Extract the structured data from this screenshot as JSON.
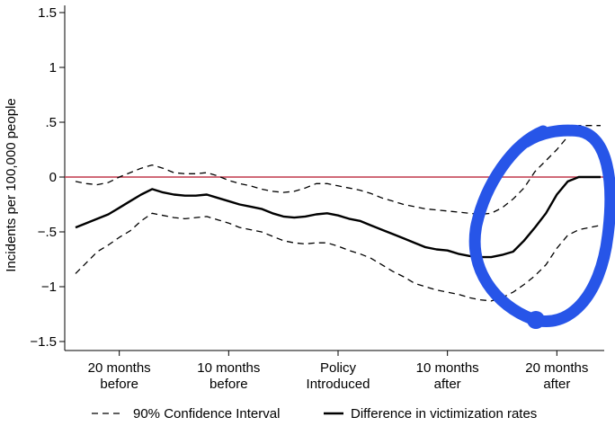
{
  "chart_data": {
    "type": "line",
    "ylabel": "Incidents per 100,000 people",
    "ylim": [
      -1.5,
      1.5
    ],
    "y_ticks": [
      {
        "value": 1.5,
        "label": "1.5"
      },
      {
        "value": 1,
        "label": "1"
      },
      {
        "value": 0.5,
        "label": ".5"
      },
      {
        "value": 0,
        "label": "0"
      },
      {
        "value": -0.5,
        "label": "−.5"
      },
      {
        "value": -1,
        "label": "−1"
      },
      {
        "value": -1.5,
        "label": "−1.5"
      }
    ],
    "xlim": [
      -24,
      24
    ],
    "x_ticks": [
      {
        "value": -20,
        "line1": "20 months",
        "line2": "before"
      },
      {
        "value": -10,
        "line1": "10 months",
        "line2": "before"
      },
      {
        "value": 0,
        "line1": "Policy",
        "line2": "Introduced"
      },
      {
        "value": 10,
        "line1": "10 months",
        "line2": "after"
      },
      {
        "value": 20,
        "line1": "20 months",
        "line2": "after"
      }
    ],
    "reference_line": {
      "y": 0,
      "color": "#c0394b"
    },
    "x": [
      -24,
      -23,
      -22,
      -21,
      -20,
      -19,
      -18,
      -17,
      -16,
      -15,
      -14,
      -13,
      -12,
      -11,
      -10,
      -9,
      -8,
      -7,
      -6,
      -5,
      -4,
      -3,
      -2,
      -1,
      0,
      1,
      2,
      3,
      4,
      5,
      6,
      7,
      8,
      9,
      10,
      11,
      12,
      13,
      14,
      15,
      16,
      17,
      18,
      19,
      20,
      21,
      22,
      23,
      24
    ],
    "series": [
      {
        "name": "Difference in victimization rates",
        "style": "solid",
        "color": "#000000",
        "values": [
          -0.46,
          -0.42,
          -0.38,
          -0.34,
          -0.28,
          -0.22,
          -0.16,
          -0.11,
          -0.14,
          -0.16,
          -0.17,
          -0.17,
          -0.16,
          -0.19,
          -0.22,
          -0.25,
          -0.27,
          -0.29,
          -0.33,
          -0.36,
          -0.37,
          -0.36,
          -0.34,
          -0.33,
          -0.35,
          -0.38,
          -0.4,
          -0.44,
          -0.48,
          -0.52,
          -0.56,
          -0.6,
          -0.64,
          -0.66,
          -0.67,
          -0.7,
          -0.72,
          -0.73,
          -0.73,
          -0.71,
          -0.68,
          -0.58,
          -0.46,
          -0.33,
          -0.16,
          -0.04,
          0.0,
          0.0,
          0.0
        ]
      },
      {
        "name": "90% Confidence Interval",
        "style": "dashed",
        "color": "#000000",
        "values": [
          -0.04,
          -0.06,
          -0.07,
          -0.05,
          0.0,
          0.04,
          0.08,
          0.11,
          0.08,
          0.04,
          0.03,
          0.03,
          0.04,
          0.01,
          -0.03,
          -0.06,
          -0.08,
          -0.11,
          -0.13,
          -0.14,
          -0.13,
          -0.1,
          -0.06,
          -0.06,
          -0.08,
          -0.1,
          -0.12,
          -0.15,
          -0.19,
          -0.22,
          -0.25,
          -0.27,
          -0.29,
          -0.3,
          -0.31,
          -0.32,
          -0.33,
          -0.34,
          -0.33,
          -0.28,
          -0.2,
          -0.1,
          0.05,
          0.15,
          0.25,
          0.37,
          0.47,
          0.47,
          0.47
        ]
      },
      {
        "name": "90% Confidence Interval (lower)",
        "style": "dashed",
        "color": "#000000",
        "values": [
          -0.88,
          -0.78,
          -0.68,
          -0.62,
          -0.55,
          -0.49,
          -0.4,
          -0.33,
          -0.35,
          -0.37,
          -0.38,
          -0.37,
          -0.36,
          -0.39,
          -0.42,
          -0.46,
          -0.48,
          -0.5,
          -0.54,
          -0.58,
          -0.6,
          -0.61,
          -0.6,
          -0.6,
          -0.63,
          -0.67,
          -0.7,
          -0.74,
          -0.8,
          -0.86,
          -0.91,
          -0.97,
          -1.0,
          -1.03,
          -1.05,
          -1.07,
          -1.1,
          -1.12,
          -1.13,
          -1.1,
          -1.05,
          -0.98,
          -0.9,
          -0.8,
          -0.65,
          -0.53,
          -0.48,
          -0.46,
          -0.44
        ]
      }
    ],
    "legend": {
      "placement": "bottom",
      "items": [
        {
          "label": "90% Confidence Interval",
          "style": "dashed"
        },
        {
          "label": "Difference in victimization rates",
          "style": "solid"
        }
      ]
    },
    "annotation": {
      "type": "hand-drawn-circle",
      "color": "#2755e8"
    }
  }
}
